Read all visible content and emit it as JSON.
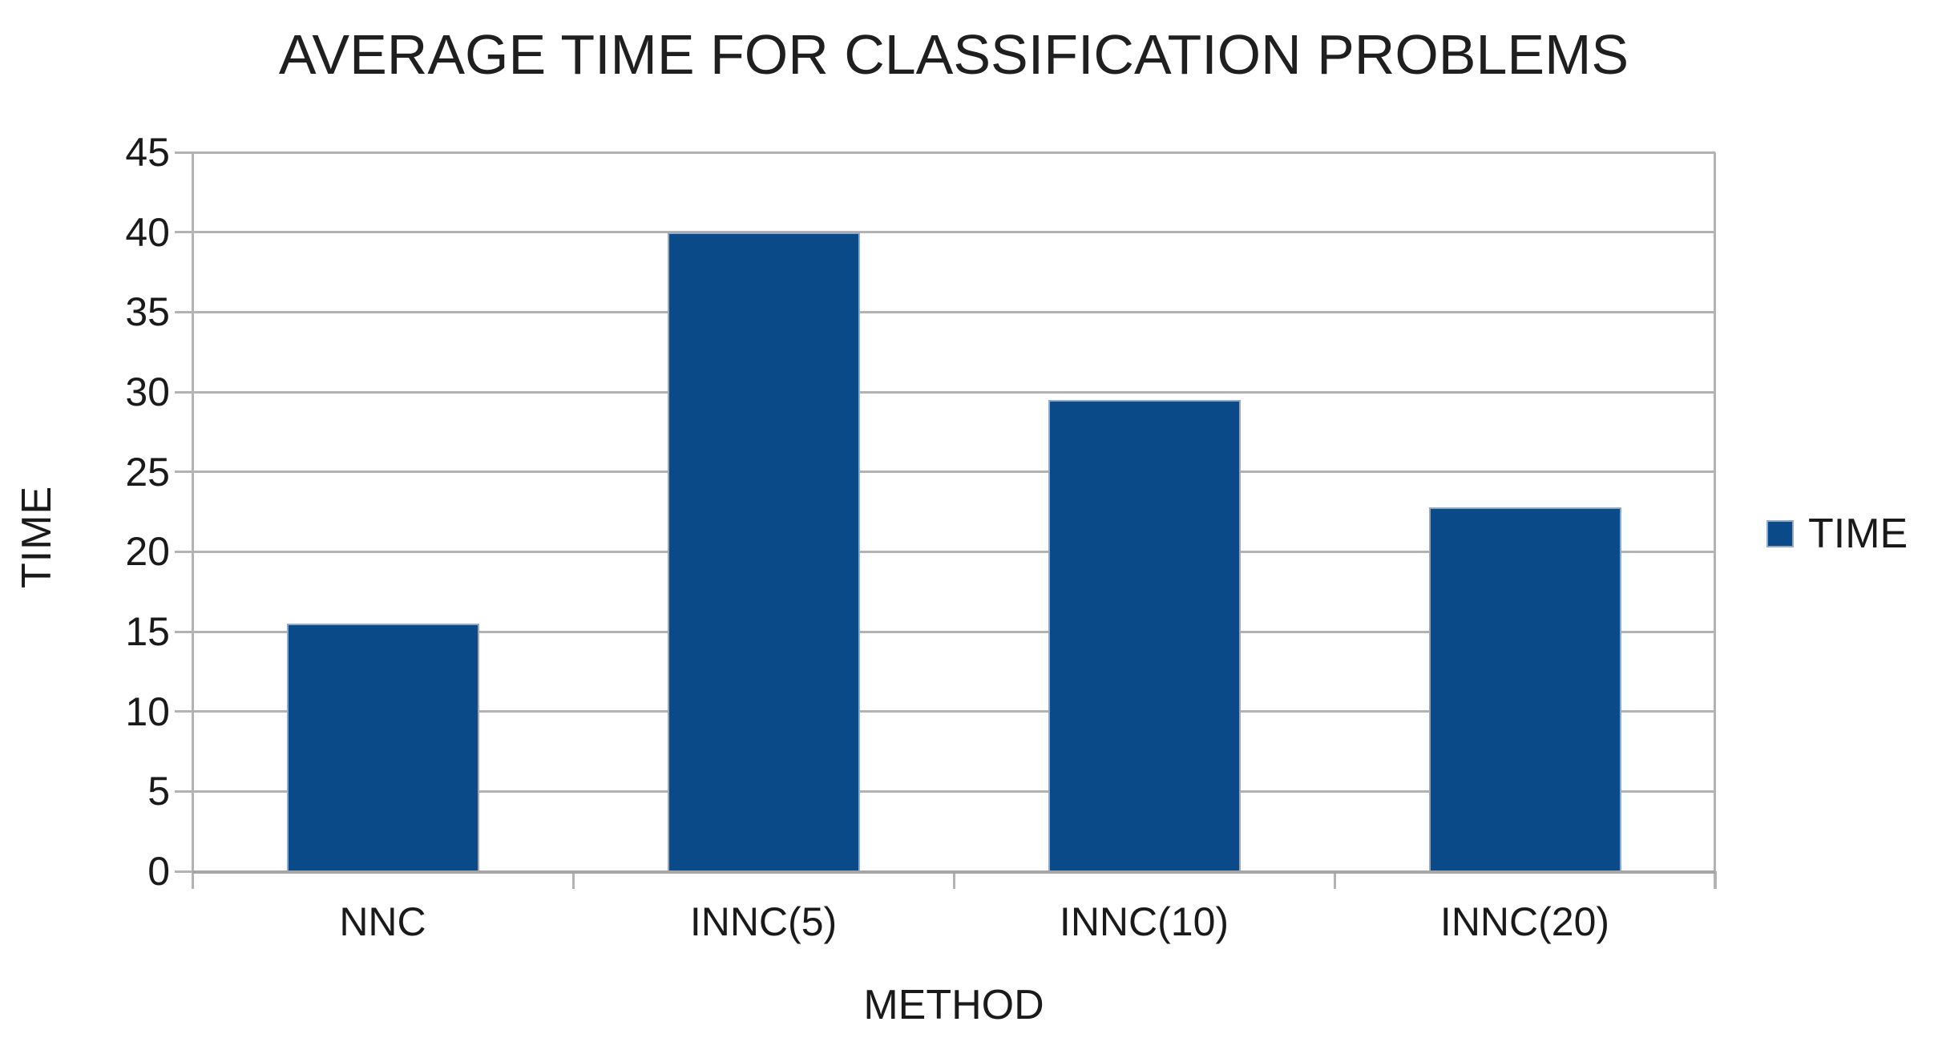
{
  "chart_data": {
    "type": "bar",
    "title": "AVERAGE TIME FOR CLASSIFICATION PROBLEMS",
    "categories": [
      "NNC",
      "INNC(5)",
      "INNC(10)",
      "INNC(20)"
    ],
    "series": [
      {
        "name": "TIME",
        "values": [
          15.5,
          40,
          29.5,
          22.8
        ]
      }
    ],
    "xlabel": "METHOD",
    "ylabel": "TIME",
    "ylim": [
      0,
      45
    ],
    "yticks": [
      0,
      5,
      10,
      15,
      20,
      25,
      30,
      35,
      40,
      45
    ],
    "grid": "horizontal",
    "legend_position": "right",
    "legend_entries": [
      "TIME"
    ],
    "colors": {
      "bar": "#0b4a88",
      "bar_border": "#93a9c7",
      "gridline": "#b3b3b3",
      "axis": "#a6a6a6",
      "text": "#1a1a1a",
      "background": "#ffffff"
    }
  }
}
